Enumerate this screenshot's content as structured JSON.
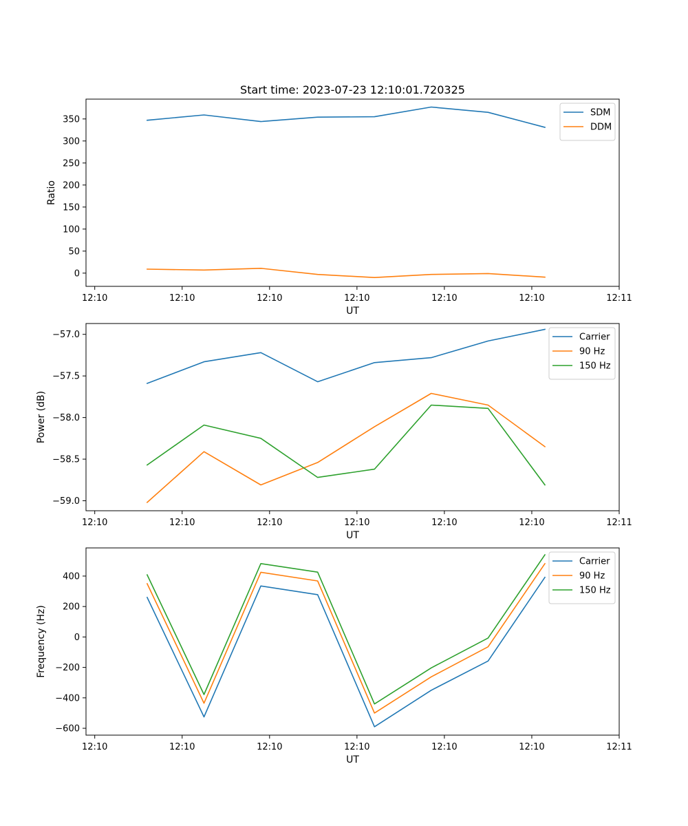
{
  "figure_title": "Start time: 2023-07-23 12:10:01.720325",
  "colors": {
    "blue": "#1f77b4",
    "orange": "#ff7f0e",
    "green": "#2ca02c"
  },
  "chart_data": [
    {
      "type": "line",
      "title": "Start time: 2023-07-23 12:10:01.720325",
      "xlabel": "UT",
      "ylabel": "Ratio",
      "x": [
        0.6,
        1.25,
        1.9,
        2.55,
        3.2,
        3.85,
        4.5,
        5.15
      ],
      "xlim": [
        -0.1,
        6.0
      ],
      "x_ticks": [
        0,
        1,
        2,
        3,
        4,
        5,
        6
      ],
      "x_tick_labels": [
        "12:10",
        "12:10",
        "12:10",
        "12:10",
        "12:10",
        "12:10",
        "12:11"
      ],
      "ylim": [
        -30,
        395
      ],
      "y_ticks": [
        0,
        50,
        100,
        150,
        200,
        250,
        300,
        350
      ],
      "y_tick_labels": [
        "0",
        "50",
        "100",
        "150",
        "200",
        "250",
        "300",
        "350"
      ],
      "legend_position": "top-right",
      "series": [
        {
          "name": "SDM",
          "color": "#1f77b4",
          "values": [
            347,
            359,
            344,
            354,
            355,
            377,
            365,
            331
          ]
        },
        {
          "name": "DDM",
          "color": "#ff7f0e",
          "values": [
            9,
            7,
            11,
            -3,
            -10,
            -3,
            -1,
            -9
          ]
        }
      ]
    },
    {
      "type": "line",
      "title": "",
      "xlabel": "UT",
      "ylabel": "Power (dB)",
      "x": [
        0.6,
        1.25,
        1.9,
        2.55,
        3.2,
        3.85,
        4.5,
        5.15
      ],
      "xlim": [
        -0.1,
        6.0
      ],
      "x_ticks": [
        0,
        1,
        2,
        3,
        4,
        5,
        6
      ],
      "x_tick_labels": [
        "12:10",
        "12:10",
        "12:10",
        "12:10",
        "12:10",
        "12:10",
        "12:11"
      ],
      "ylim": [
        -59.12,
        -56.87
      ],
      "y_ticks": [
        -59.0,
        -58.5,
        -58.0,
        -57.5,
        -57.0
      ],
      "y_tick_labels": [
        "−59.0",
        "−58.5",
        "−58.0",
        "−57.5",
        "−57.0"
      ],
      "legend_position": "top-right",
      "series": [
        {
          "name": "Carrier",
          "color": "#1f77b4",
          "values": [
            -57.59,
            -57.33,
            -57.22,
            -57.57,
            -57.34,
            -57.28,
            -57.08,
            -56.94
          ]
        },
        {
          "name": "90 Hz",
          "color": "#ff7f0e",
          "values": [
            -59.02,
            -58.41,
            -58.81,
            -58.54,
            -58.11,
            -57.71,
            -57.85,
            -58.35
          ]
        },
        {
          "name": "150 Hz",
          "color": "#2ca02c",
          "values": [
            -58.57,
            -58.09,
            -58.25,
            -58.72,
            -58.62,
            -57.85,
            -57.89,
            -58.81
          ]
        }
      ]
    },
    {
      "type": "line",
      "title": "",
      "xlabel": "UT",
      "ylabel": "Frequency (Hz)",
      "x": [
        0.6,
        1.25,
        1.9,
        2.55,
        3.2,
        3.85,
        4.5,
        5.15
      ],
      "xlim": [
        -0.1,
        6.0
      ],
      "x_ticks": [
        0,
        1,
        2,
        3,
        4,
        5,
        6
      ],
      "x_tick_labels": [
        "12:10",
        "12:10",
        "12:10",
        "12:10",
        "12:10",
        "12:10",
        "12:11"
      ],
      "ylim": [
        -645,
        585
      ],
      "y_ticks": [
        -600,
        -400,
        -200,
        0,
        200,
        400
      ],
      "y_tick_labels": [
        "−600",
        "−400",
        "−200",
        "0",
        "200",
        "400"
      ],
      "legend_position": "top-right",
      "series": [
        {
          "name": "Carrier",
          "color": "#1f77b4",
          "values": [
            260,
            -525,
            335,
            278,
            -590,
            -350,
            -158,
            392
          ]
        },
        {
          "name": "90 Hz",
          "color": "#ff7f0e",
          "values": [
            350,
            -435,
            425,
            368,
            -500,
            -262,
            -65,
            482
          ]
        },
        {
          "name": "150 Hz",
          "color": "#2ca02c",
          "values": [
            408,
            -378,
            482,
            426,
            -440,
            -203,
            -7,
            540
          ]
        }
      ]
    }
  ]
}
